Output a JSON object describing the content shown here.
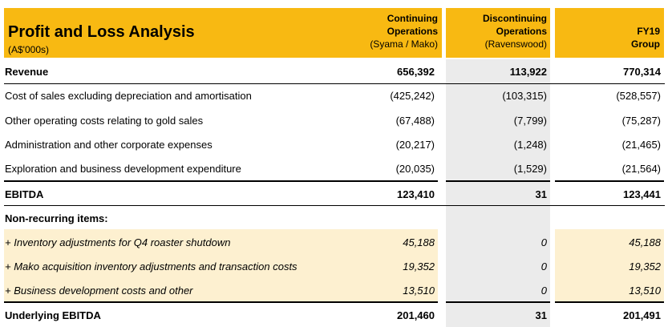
{
  "header": {
    "title": "Profit and Loss Analysis",
    "subtitle": "(A$'000s)",
    "col1": [
      "Continuing",
      "Operations",
      "(Syama / Mako)"
    ],
    "col2": [
      "Discontinuing",
      "Operations",
      "(Ravenswood)"
    ],
    "col3": [
      "FY19",
      "Group"
    ]
  },
  "rows": [
    {
      "label": "Revenue",
      "v1": "656,392",
      "v2": "113,922",
      "v3": "770,314"
    },
    {
      "label": "Cost of sales excluding depreciation and amortisation",
      "v1": "(425,242)",
      "v2": "(103,315)",
      "v3": "(528,557)"
    },
    {
      "label": "Other operating costs relating to gold sales",
      "v1": "(67,488)",
      "v2": "(7,799)",
      "v3": "(75,287)"
    },
    {
      "label": "Administration and other corporate expenses",
      "v1": "(20,217)",
      "v2": "(1,248)",
      "v3": "(21,465)"
    },
    {
      "label": "Exploration and business development expenditure",
      "v1": "(20,035)",
      "v2": "(1,529)",
      "v3": "(21,564)"
    },
    {
      "label": "EBITDA",
      "v1": "123,410",
      "v2": "31",
      "v3": "123,441"
    },
    {
      "label": "Non-recurring items:",
      "v1": "",
      "v2": "",
      "v3": ""
    },
    {
      "label": "+ Inventory adjustments for Q4 roaster shutdown",
      "v1": "45,188",
      "v2": "0",
      "v3": "45,188"
    },
    {
      "label": "+ Mako acquisition inventory adjustments and transaction costs",
      "v1": "19,352",
      "v2": "0",
      "v3": "19,352"
    },
    {
      "label": "+ Business development costs and other",
      "v1": "13,510",
      "v2": "0",
      "v3": "13,510"
    },
    {
      "label": "Underlying EBITDA",
      "v1": "201,460",
      "v2": "31",
      "v3": "201,491"
    }
  ],
  "colors": {
    "header": "#f8b912",
    "highlight": "#fdf0d0",
    "discontinued": "#ebebeb"
  }
}
